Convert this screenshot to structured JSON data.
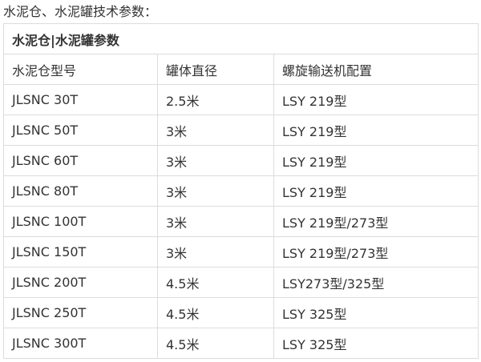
{
  "intro": "水泥仓、水泥罐技术参数：",
  "table": {
    "title": "水泥仓|水泥罐参数",
    "headers": [
      "水泥仓型号",
      "罐体直径",
      "螺旋输送机配置"
    ],
    "rows": [
      [
        "JLSNC 30T",
        "2.5米",
        "LSY 219型"
      ],
      [
        "JLSNC 50T",
        "3米",
        "LSY 219型"
      ],
      [
        "JLSNC 60T",
        "3米",
        "LSY 219型"
      ],
      [
        "JLSNC 80T",
        "3米",
        "LSY 219型"
      ],
      [
        "JLSNC 100T",
        "3米",
        "LSY 219型/273型"
      ],
      [
        "JLSNC 150T",
        "3米",
        "LSY 219型/273型"
      ],
      [
        "JLSNC 200T",
        "4.5米",
        "LSY273型/325型"
      ],
      [
        "JLSNC 250T",
        "4.5米",
        "LSY 325型"
      ],
      [
        "JLSNC 300T",
        "4.5米",
        "LSY 325型"
      ]
    ]
  }
}
